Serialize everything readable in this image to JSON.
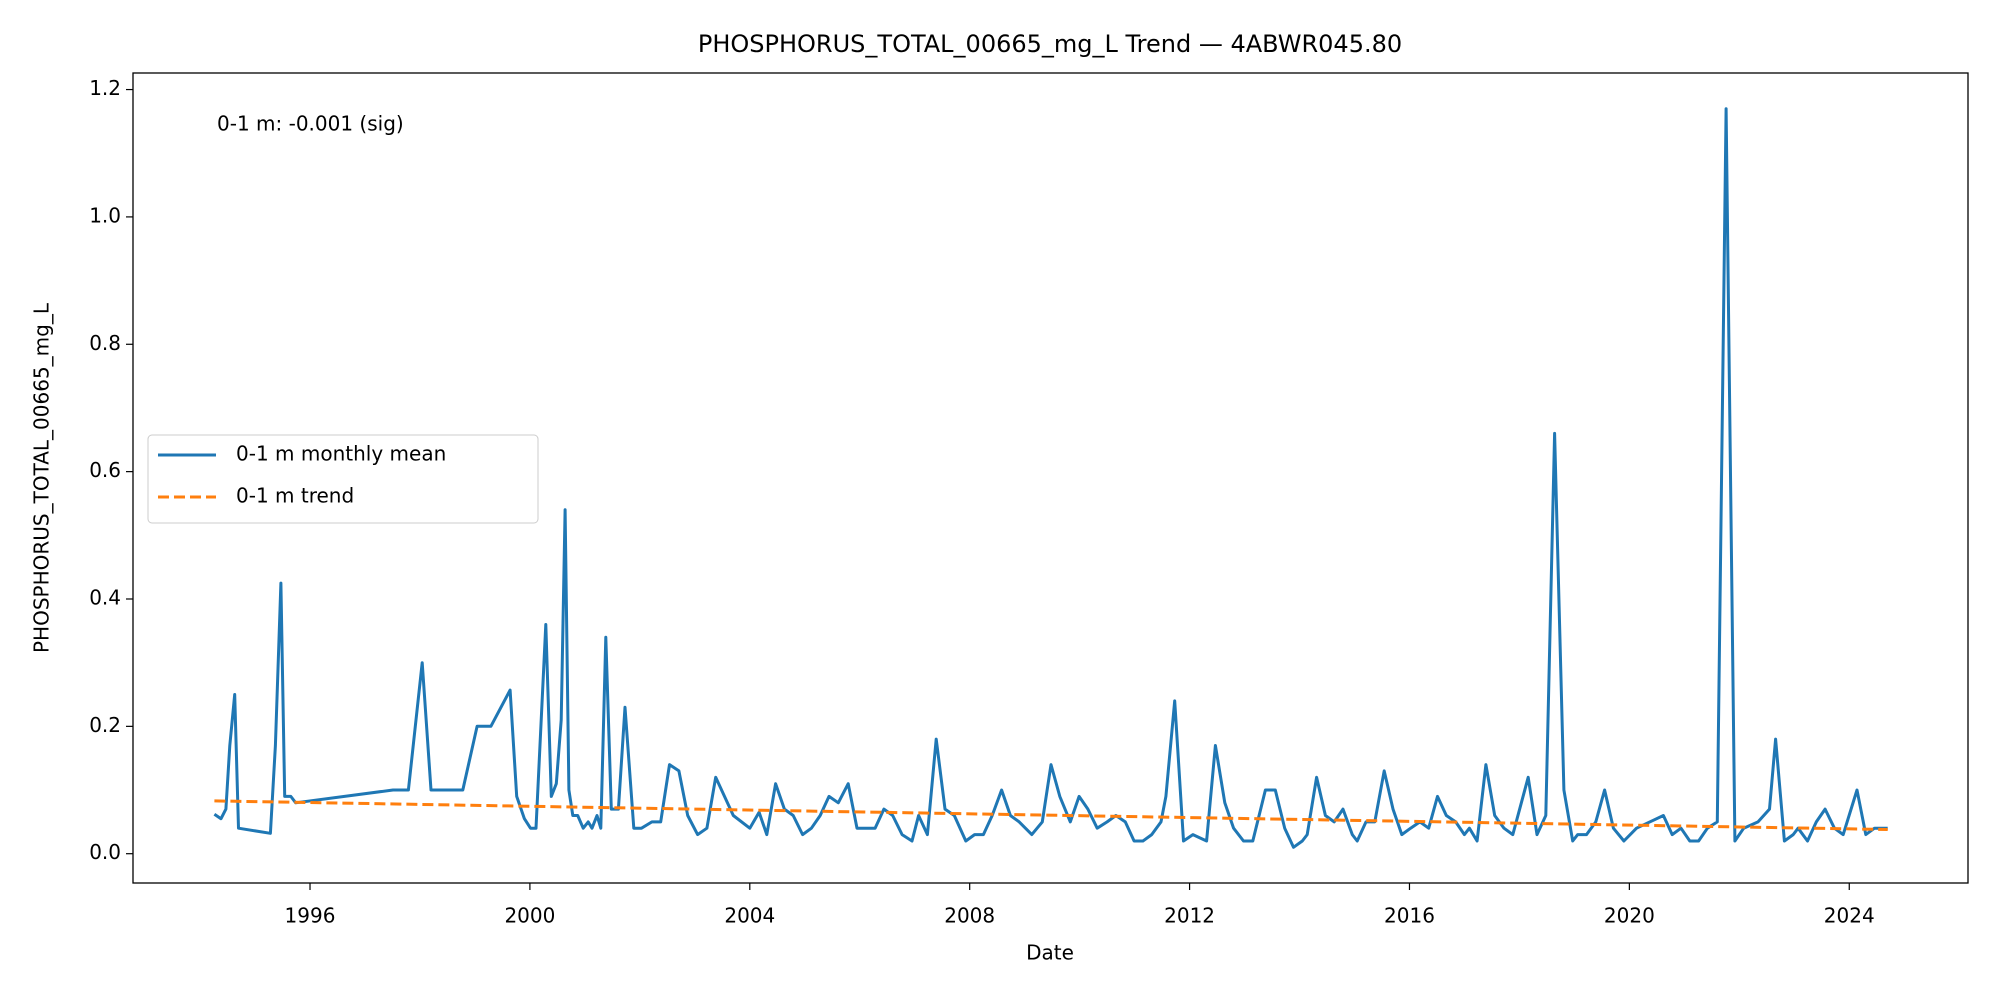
{
  "chart_data": {
    "type": "line",
    "title": "PHOSPHORUS_TOTAL_00665_mg_L Trend — 4ABWR045.80",
    "x_label": "Date",
    "y_label": "PHOSPHORUS_TOTAL_00665_mg_L",
    "annotation": "0-1 m: -0.001 (sig)",
    "legend": "center left",
    "grid": false,
    "xlim": [
      1992.78,
      2026.16
    ],
    "ylim": [
      -0.046,
      1.226
    ],
    "xticks": [
      1996,
      2000,
      2004,
      2008,
      2012,
      2016,
      2020,
      2024
    ],
    "yticks": [
      {
        "value": 0,
        "label": "0.0"
      },
      0.2,
      0.4,
      0.6,
      0.8,
      {
        "value": 1,
        "label": "1.0"
      },
      1.2
    ],
    "series": [
      {
        "name": "0-1 m monthly mean",
        "color": "#1f77b4",
        "style": "solid",
        "x": [
          1994.26,
          1994.38,
          1994.47,
          1994.54,
          1994.63,
          1994.7,
          1995.28,
          1995.37,
          1995.47,
          1995.54,
          1995.65,
          1995.74,
          1997.51,
          1997.79,
          1998.04,
          1998.2,
          1998.78,
          1999.04,
          1999.29,
          1999.64,
          1999.76,
          1999.9,
          2000.01,
          2000.11,
          2000.29,
          2000.39,
          2000.48,
          2000.57,
          2000.64,
          2000.71,
          2000.78,
          2000.87,
          2000.97,
          2001.06,
          2001.13,
          2001.22,
          2001.29,
          2001.38,
          2001.48,
          2001.61,
          2001.73,
          2001.89,
          2002.03,
          2002.22,
          2002.38,
          2002.54,
          2002.71,
          2002.87,
          2003.05,
          2003.22,
          2003.38,
          2003.54,
          2003.7,
          2004.0,
          2004.17,
          2004.31,
          2004.47,
          2004.63,
          2004.79,
          2004.96,
          2005.12,
          2005.28,
          2005.44,
          2005.61,
          2005.79,
          2005.95,
          2006.28,
          2006.44,
          2006.6,
          2006.77,
          2006.95,
          2007.07,
          2007.23,
          2007.39,
          2007.55,
          2007.72,
          2007.93,
          2008.09,
          2008.25,
          2008.41,
          2008.58,
          2008.74,
          2008.9,
          2009.13,
          2009.32,
          2009.48,
          2009.64,
          2009.83,
          2009.99,
          2010.15,
          2010.32,
          2010.5,
          2010.66,
          2010.83,
          2010.99,
          2011.15,
          2011.31,
          2011.48,
          2011.57,
          2011.73,
          2011.89,
          2012.06,
          2012.31,
          2012.47,
          2012.64,
          2012.8,
          2012.98,
          2013.15,
          2013.38,
          2013.56,
          2013.73,
          2013.89,
          2014.05,
          2014.14,
          2014.31,
          2014.47,
          2014.63,
          2014.79,
          2014.96,
          2015.05,
          2015.21,
          2015.37,
          2015.54,
          2015.7,
          2015.86,
          2016.02,
          2016.19,
          2016.35,
          2016.51,
          2016.67,
          2016.84,
          2017.0,
          2017.09,
          2017.23,
          2017.39,
          2017.55,
          2017.72,
          2017.88,
          2018.16,
          2018.32,
          2018.48,
          2018.64,
          2018.81,
          2018.97,
          2019.06,
          2019.22,
          2019.39,
          2019.55,
          2019.71,
          2019.9,
          2020.13,
          2020.62,
          2020.78,
          2020.94,
          2021.1,
          2021.26,
          2021.42,
          2021.6,
          2021.76,
          2021.92,
          2022.08,
          2022.34,
          2022.55,
          2022.66,
          2022.82,
          2022.98,
          2023.07,
          2023.24,
          2023.4,
          2023.56,
          2023.73,
          2023.89,
          2024.14,
          2024.3,
          2024.46,
          2024.7
        ],
        "values": [
          0.062,
          0.055,
          0.07,
          0.17,
          0.25,
          0.04,
          0.032,
          0.17,
          0.425,
          0.09,
          0.09,
          0.08,
          0.1,
          0.1,
          0.3,
          0.1,
          0.1,
          0.2,
          0.2,
          0.257,
          0.09,
          0.055,
          0.04,
          0.04,
          0.36,
          0.09,
          0.11,
          0.21,
          0.54,
          0.1,
          0.06,
          0.06,
          0.04,
          0.05,
          0.04,
          0.06,
          0.04,
          0.34,
          0.07,
          0.07,
          0.23,
          0.04,
          0.04,
          0.05,
          0.05,
          0.14,
          0.13,
          0.06,
          0.03,
          0.04,
          0.12,
          0.09,
          0.06,
          0.04,
          0.065,
          0.03,
          0.11,
          0.07,
          0.06,
          0.03,
          0.04,
          0.06,
          0.09,
          0.08,
          0.11,
          0.04,
          0.04,
          0.07,
          0.06,
          0.03,
          0.02,
          0.06,
          0.03,
          0.18,
          0.07,
          0.06,
          0.02,
          0.03,
          0.03,
          0.06,
          0.1,
          0.06,
          0.05,
          0.03,
          0.05,
          0.14,
          0.09,
          0.05,
          0.09,
          0.07,
          0.04,
          0.05,
          0.06,
          0.05,
          0.02,
          0.02,
          0.03,
          0.05,
          0.09,
          0.24,
          0.02,
          0.03,
          0.02,
          0.17,
          0.08,
          0.04,
          0.02,
          0.02,
          0.1,
          0.1,
          0.04,
          0.01,
          0.02,
          0.03,
          0.12,
          0.06,
          0.05,
          0.07,
          0.03,
          0.02,
          0.05,
          0.05,
          0.13,
          0.07,
          0.03,
          0.04,
          0.05,
          0.04,
          0.09,
          0.06,
          0.05,
          0.03,
          0.04,
          0.02,
          0.14,
          0.06,
          0.04,
          0.03,
          0.12,
          0.03,
          0.06,
          0.66,
          0.1,
          0.02,
          0.03,
          0.03,
          0.05,
          0.1,
          0.04,
          0.02,
          0.04,
          0.06,
          0.03,
          0.04,
          0.02,
          0.02,
          0.04,
          0.05,
          1.17,
          0.02,
          0.04,
          0.05,
          0.07,
          0.18,
          0.02,
          0.03,
          0.04,
          0.02,
          0.05,
          0.07,
          0.04,
          0.03,
          0.1,
          0.03,
          0.04,
          0.04
        ]
      },
      {
        "name": "0-1 m trend",
        "color": "#ff7f0e",
        "style": "dashed",
        "x": [
          1994.26,
          2024.7
        ],
        "values": [
          0.083,
          0.038
        ]
      }
    ]
  }
}
